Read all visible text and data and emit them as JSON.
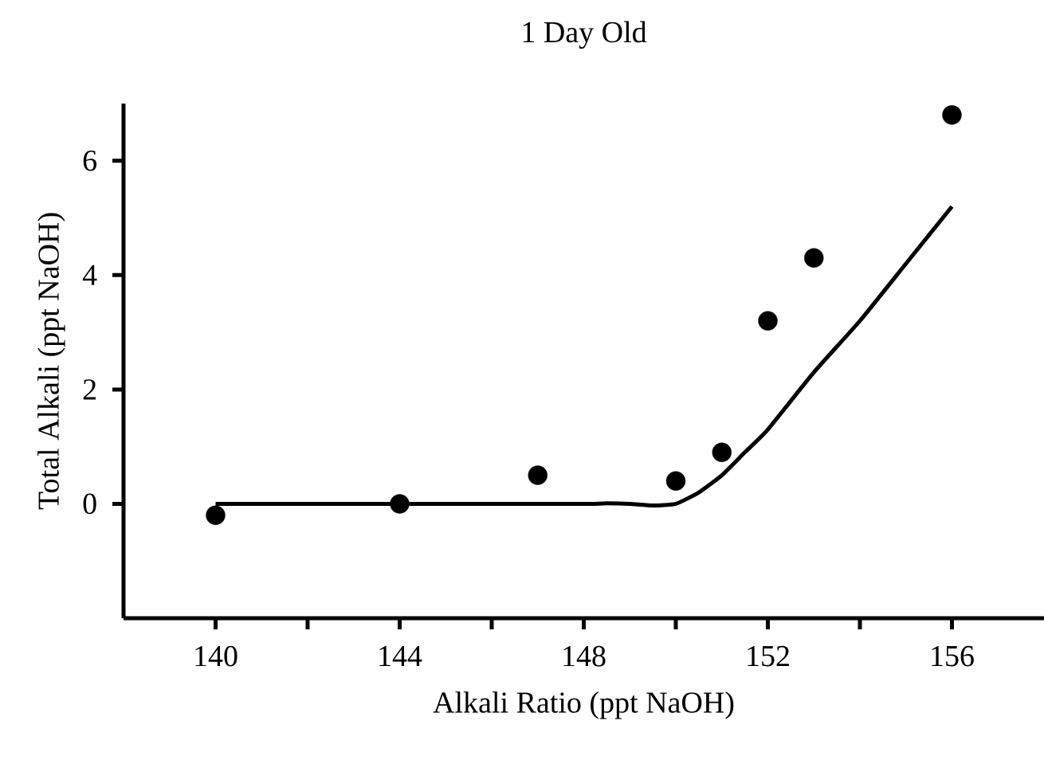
{
  "chart_data": {
    "type": "scatter",
    "title": "1 Day Old",
    "xlabel": "Alkali Ratio (ppt NaOH)",
    "ylabel": "Total Alkali (ppt NaOH)",
    "xlim": [
      138,
      158
    ],
    "ylim": [
      -2,
      7
    ],
    "xticks": [
      140,
      {
        "value": 142,
        "label": null
      },
      144,
      {
        "value": 146,
        "label": null
      },
      148,
      {
        "value": 150,
        "label": null
      },
      152,
      {
        "value": 154,
        "label": null
      },
      156
    ],
    "yticks": [
      0,
      2,
      4,
      6
    ],
    "series": [
      {
        "color": "#000000",
        "marker": "circle",
        "x": [
          140,
          144,
          147,
          150,
          151,
          152,
          153,
          156
        ],
        "values": [
          -0.2,
          0,
          0.5,
          0.4,
          0.9,
          3.2,
          4.3,
          6.8
        ]
      },
      {
        "type": "line",
        "color": "#000000",
        "marker": "none",
        "line_style": "solid",
        "x": [
          140,
          144,
          148,
          148.5,
          149,
          149.5,
          150,
          150.5,
          151,
          151.5,
          152,
          153,
          154,
          155,
          156
        ],
        "values": [
          0,
          0,
          0,
          0.01,
          0,
          -0.03,
          0,
          0.2,
          0.5,
          0.9,
          1.3,
          2.3,
          3.2,
          4.2,
          5.2
        ]
      }
    ]
  }
}
